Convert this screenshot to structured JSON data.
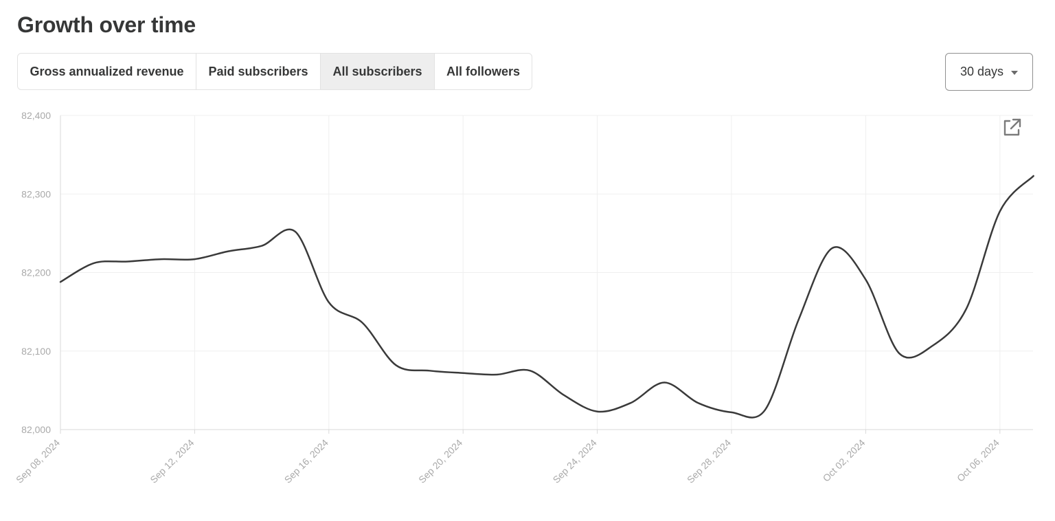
{
  "header": {
    "title": "Growth over time"
  },
  "tabs": [
    {
      "label": "Gross annualized revenue",
      "active": false
    },
    {
      "label": "Paid subscribers",
      "active": false
    },
    {
      "label": "All subscribers",
      "active": true
    },
    {
      "label": "All followers",
      "active": false
    }
  ],
  "range_select": {
    "value": "30 days"
  },
  "icons": {
    "open_external": "external-link-icon"
  },
  "colors": {
    "line": "#3a3a3a",
    "grid": "#efefef",
    "axis_text": "#a9a9a9"
  },
  "chart_data": {
    "type": "line",
    "ylim": [
      82000,
      82400
    ],
    "y_ticks": [
      82000,
      82100,
      82200,
      82300,
      82400
    ],
    "y_tick_labels": [
      "82,000",
      "82,100",
      "82,200",
      "82,300",
      "82,400"
    ],
    "x_tick_labels": [
      "Sep 08, 2024",
      "Sep 12, 2024",
      "Sep 16, 2024",
      "Sep 20, 2024",
      "Sep 24, 2024",
      "Sep 28, 2024",
      "Oct 02, 2024",
      "Oct 06, 2024"
    ],
    "grid": true,
    "series": [
      {
        "x": [
          "Sep 08, 2024",
          "Sep 09, 2024",
          "Sep 10, 2024",
          "Sep 11, 2024",
          "Sep 12, 2024",
          "Sep 13, 2024",
          "Sep 14, 2024",
          "Sep 15, 2024",
          "Sep 16, 2024",
          "Sep 17, 2024",
          "Sep 18, 2024",
          "Sep 19, 2024",
          "Sep 20, 2024",
          "Sep 21, 2024",
          "Sep 22, 2024",
          "Sep 23, 2024",
          "Sep 24, 2024",
          "Sep 25, 2024",
          "Sep 26, 2024",
          "Sep 27, 2024",
          "Sep 28, 2024",
          "Sep 29, 2024",
          "Sep 30, 2024",
          "Oct 01, 2024",
          "Oct 02, 2024",
          "Oct 03, 2024",
          "Oct 04, 2024",
          "Oct 05, 2024",
          "Oct 06, 2024",
          "Oct 07, 2024"
        ],
        "values": [
          82188,
          82212,
          82214,
          82217,
          82217,
          82227,
          82234,
          82252,
          82162,
          82136,
          82082,
          82075,
          82072,
          82070,
          82075,
          82044,
          82023,
          82034,
          82060,
          82034,
          82022,
          82025,
          82140,
          82231,
          82191,
          82097,
          82107,
          82154,
          82278,
          82323
        ]
      }
    ]
  }
}
